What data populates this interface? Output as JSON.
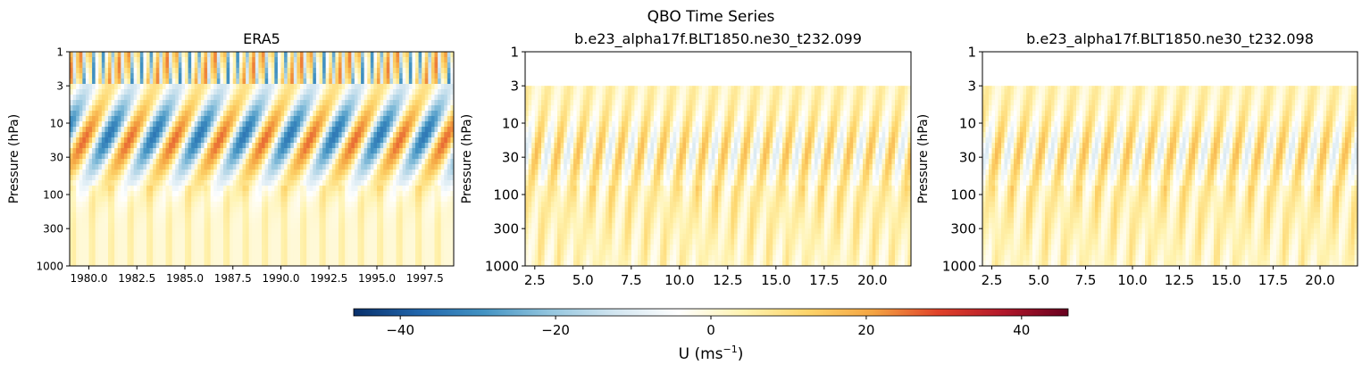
{
  "suptitle": "QBO Time Series",
  "chart_data": [
    {
      "type": "heatmap",
      "title": "ERA5",
      "ylabel": "Pressure (hPa)",
      "xlabel": "",
      "y_scale": "log",
      "y_inverted": true,
      "ylim": [
        1000,
        1
      ],
      "y_ticks": [
        "1",
        "3",
        "10",
        "30",
        "100",
        "300",
        "1000"
      ],
      "y_tick_values": [
        1,
        3,
        10,
        30,
        100,
        300,
        1000
      ],
      "xlim": [
        1979.0,
        1999.0
      ],
      "x_ticks": [
        "1980.0",
        "1982.5",
        "1985.0",
        "1987.5",
        "1990.0",
        "1992.5",
        "1995.0",
        "1997.5"
      ],
      "x_tick_values": [
        1980.0,
        1982.5,
        1985.0,
        1987.5,
        1990.0,
        1992.5,
        1995.0,
        1997.5
      ],
      "data_top_pressure": 1,
      "variable": "U"
    },
    {
      "type": "heatmap",
      "title": "b.e23_alpha17f.BLT1850.ne30_t232.099",
      "ylabel": "Pressure (hPa)",
      "xlabel": "",
      "y_scale": "log",
      "y_inverted": true,
      "ylim": [
        1000,
        1
      ],
      "y_ticks": [
        "1",
        "3",
        "10",
        "30",
        "100",
        "300",
        "1000"
      ],
      "y_tick_values": [
        1,
        3,
        10,
        30,
        100,
        300,
        1000
      ],
      "xlim": [
        2.0,
        22.0
      ],
      "x_ticks": [
        "2.5",
        "5.0",
        "7.5",
        "10.0",
        "12.5",
        "15.0",
        "17.5",
        "20.0"
      ],
      "x_tick_values": [
        2.5,
        5.0,
        7.5,
        10.0,
        12.5,
        15.0,
        17.5,
        20.0
      ],
      "data_top_pressure": 3,
      "variable": "U"
    },
    {
      "type": "heatmap",
      "title": "b.e23_alpha17f.BLT1850.ne30_t232.098",
      "ylabel": "Pressure (hPa)",
      "xlabel": "",
      "y_scale": "log",
      "y_inverted": true,
      "ylim": [
        1000,
        1
      ],
      "y_ticks": [
        "1",
        "3",
        "10",
        "30",
        "100",
        "300",
        "1000"
      ],
      "y_tick_values": [
        1,
        3,
        10,
        30,
        100,
        300,
        1000
      ],
      "xlim": [
        2.0,
        22.0
      ],
      "x_ticks": [
        "2.5",
        "5.0",
        "7.5",
        "10.0",
        "12.5",
        "15.0",
        "17.5",
        "20.0"
      ],
      "x_tick_values": [
        2.5,
        5.0,
        7.5,
        10.0,
        12.5,
        15.0,
        17.5,
        20.0
      ],
      "data_top_pressure": 3,
      "variable": "U"
    }
  ],
  "colorbar": {
    "label_main": "U (ms",
    "label_sup": "−1",
    "label_end": ")",
    "vmin": -46,
    "vmax": 46,
    "ticks": [
      -40,
      -20,
      0,
      20,
      40
    ],
    "tick_labels": [
      "−40",
      "−20",
      "0",
      "20",
      "40"
    ],
    "colormap": "RdYlBu_r",
    "colors": [
      "#08306b",
      "#2166ac",
      "#4393c3",
      "#92c5de",
      "#d1e5f0",
      "#ffffff",
      "#fff3b0",
      "#fdd46a",
      "#f4a442",
      "#e0422a",
      "#b2182b",
      "#67001f"
    ]
  }
}
